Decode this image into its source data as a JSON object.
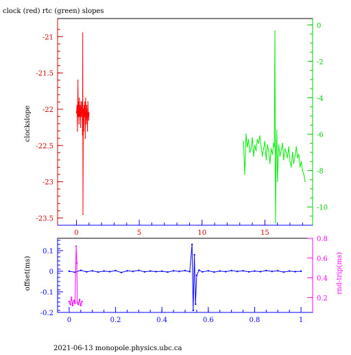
{
  "page": {
    "title": "clock (red) rtc (green) slopes",
    "footer": "2021-06-13 monopole.physics.ubc.ca"
  },
  "colors": {
    "clock": "#ff0000",
    "rtc": "#00ee00",
    "offset": "#0000ff",
    "round_trip": "#ff00ff",
    "axes_left_bottom": "#0000ff",
    "axis_top_left": "#cc0000",
    "axis_top_right": "#00cc00",
    "frame": "#000000"
  },
  "chart_data": [
    {
      "type": "line",
      "title": "clock (red) rtc (green) slopes",
      "ylabel": "clockslope",
      "xlabel": "",
      "xlim": [
        -1.5,
        18.8
      ],
      "ylim": [
        -23.6,
        -20.75
      ],
      "y2lim": [
        -11.0,
        0.35
      ],
      "x_ticks": [
        "0",
        "5",
        "10",
        "15"
      ],
      "y_ticks": [
        "-21",
        "-21.5",
        "-22",
        "-22.5",
        "-23",
        "-23.5"
      ],
      "y2_ticks": [
        "0",
        "-2",
        "-4",
        "-6",
        "-8",
        "-10"
      ],
      "grid": false,
      "series": [
        {
          "name": "clock",
          "axis": "left",
          "color": "#ff0000",
          "x": [
            0.0,
            0.05,
            0.08,
            0.12,
            0.15,
            0.18,
            0.2,
            0.23,
            0.26,
            0.29,
            0.3,
            0.33,
            0.36,
            0.39,
            0.42,
            0.45,
            0.48,
            0.5,
            0.52,
            0.55,
            0.58,
            0.61,
            0.64,
            0.67,
            0.7,
            0.73,
            0.76,
            0.79,
            0.82,
            0.85,
            0.88,
            0.91,
            0.94,
            0.97,
            1.0
          ],
          "values": [
            -22.05,
            -21.95,
            -22.3,
            -21.6,
            -22.1,
            -21.9,
            -22.2,
            -21.85,
            -22.1,
            -21.95,
            -22.0,
            -22.25,
            -21.9,
            -22.1,
            -22.0,
            -21.9,
            -22.35,
            -20.95,
            -23.45,
            -22.0,
            -22.3,
            -21.95,
            -22.1,
            -21.9,
            -22.4,
            -21.85,
            -22.05,
            -22.2,
            -21.95,
            -22.1,
            -22.3,
            -21.9,
            -22.05,
            -22.15,
            -22.05
          ]
        },
        {
          "name": "rtc",
          "axis": "right",
          "color": "#00ee00",
          "x": [
            13.3,
            13.4,
            13.5,
            13.6,
            13.7,
            13.8,
            13.9,
            14.0,
            14.1,
            14.2,
            14.3,
            14.4,
            14.5,
            14.6,
            14.7,
            14.8,
            14.9,
            15.0,
            15.1,
            15.2,
            15.3,
            15.4,
            15.5,
            15.6,
            15.7,
            15.75,
            15.8,
            15.85,
            15.9,
            15.95,
            16.0,
            16.1,
            16.2,
            16.3,
            16.4,
            16.5,
            16.6,
            16.7,
            16.8,
            16.9,
            17.0,
            17.1,
            17.2,
            17.3,
            17.4,
            17.5,
            17.6,
            17.7,
            17.8,
            17.9,
            18.0,
            18.1,
            18.2
          ],
          "values": [
            -6.4,
            -8.2,
            -6.0,
            -6.7,
            -6.3,
            -7.0,
            -6.8,
            -6.2,
            -7.2,
            -6.6,
            -6.9,
            -6.3,
            -6.5,
            -6.1,
            -6.7,
            -7.2,
            -6.8,
            -6.4,
            -7.4,
            -6.6,
            -6.9,
            -7.6,
            -6.8,
            -7.1,
            -6.5,
            -6.7,
            -0.35,
            -10.85,
            -6.9,
            -5.8,
            -8.6,
            -6.6,
            -7.2,
            -6.9,
            -6.5,
            -7.4,
            -6.8,
            -7.0,
            -7.3,
            -6.7,
            -7.5,
            -7.8,
            -7.0,
            -7.6,
            -7.2,
            -6.7,
            -7.3,
            -7.1,
            -7.8,
            -7.5,
            -8.0,
            -8.2,
            -8.6
          ]
        }
      ]
    },
    {
      "type": "scatter",
      "title": "",
      "ylabel": "offset(ms)",
      "y2label": "rnd-trip(ms)",
      "xlabel": "",
      "xlim": [
        -0.05,
        1.05
      ],
      "ylim": [
        -0.2,
        0.16
      ],
      "y2lim": [
        0.05,
        0.8
      ],
      "x_ticks": [
        "0",
        "0.2",
        "0.4",
        "0.6",
        "0.8",
        "1"
      ],
      "y_ticks": [
        "0.1",
        "0",
        "-0.1",
        "-0.2"
      ],
      "y2_ticks": [
        "0.8",
        "0.6",
        "0.4",
        "0.2"
      ],
      "grid": false,
      "series": [
        {
          "name": "offset",
          "axis": "left",
          "color": "#0000ff",
          "x": [
            0.0,
            0.025,
            0.05,
            0.075,
            0.1,
            0.125,
            0.15,
            0.175,
            0.2,
            0.225,
            0.25,
            0.275,
            0.3,
            0.325,
            0.35,
            0.375,
            0.4,
            0.425,
            0.45,
            0.475,
            0.5,
            0.52,
            0.53,
            0.535,
            0.54,
            0.545,
            0.55,
            0.56,
            0.575,
            0.6,
            0.625,
            0.65,
            0.675,
            0.7,
            0.725,
            0.75,
            0.775,
            0.8,
            0.825,
            0.85,
            0.875,
            0.9,
            0.925,
            0.95,
            0.975,
            1.0
          ],
          "values": [
            0.0,
            -0.005,
            0.004,
            -0.003,
            0.002,
            -0.004,
            0.001,
            -0.002,
            0.003,
            -0.006,
            0.002,
            -0.001,
            0.004,
            -0.003,
            0.001,
            -0.002,
            0.0,
            -0.004,
            0.002,
            -0.001,
            0.003,
            -0.002,
            0.13,
            -0.19,
            0.08,
            -0.16,
            -0.02,
            0.005,
            -0.003,
            0.002,
            -0.004,
            0.001,
            -0.002,
            0.003,
            -0.001,
            0.002,
            -0.003,
            0.001,
            -0.002,
            0.003,
            -0.001,
            0.002,
            -0.004,
            0.001,
            -0.002,
            0.0
          ]
        },
        {
          "name": "round trip",
          "axis": "right",
          "color": "#ff00ff",
          "x": [
            0.0,
            0.005,
            0.01,
            0.015,
            0.02,
            0.025,
            0.03,
            0.033,
            0.035,
            0.04,
            0.045,
            0.05,
            0.055
          ],
          "values": [
            0.16,
            0.13,
            0.2,
            0.12,
            0.17,
            0.14,
            0.72,
            0.55,
            0.15,
            0.13,
            0.18,
            0.12,
            0.16
          ]
        }
      ]
    }
  ]
}
